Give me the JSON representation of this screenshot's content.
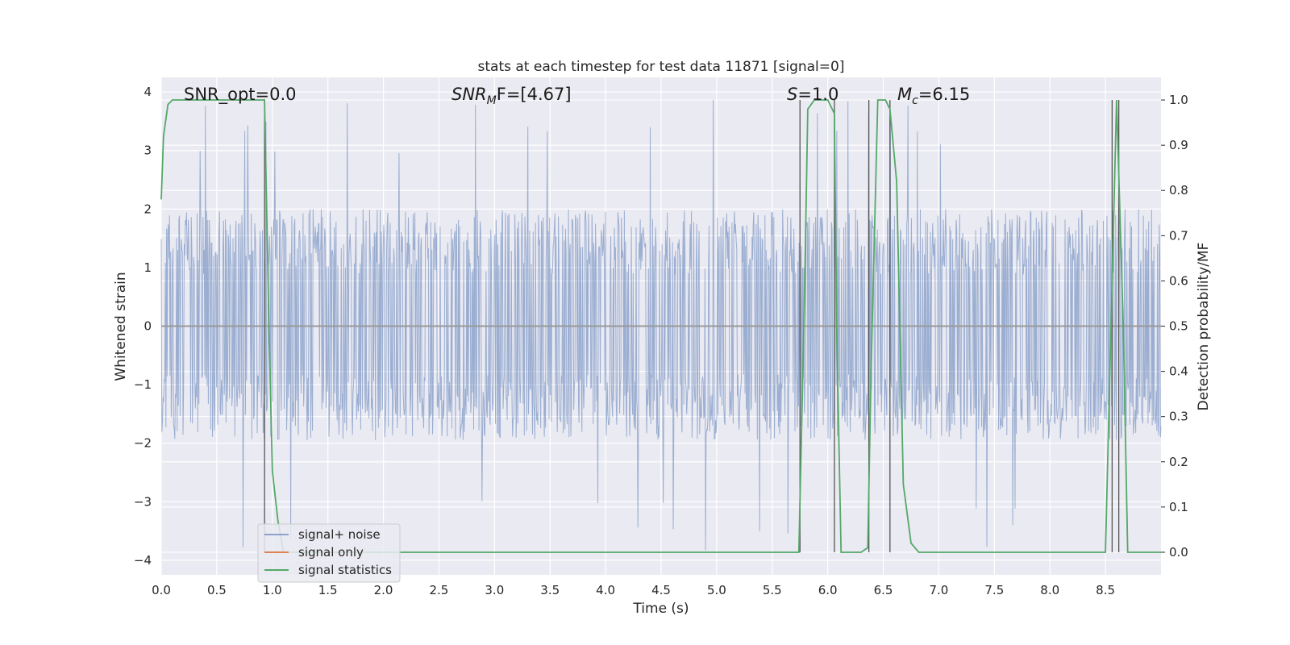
{
  "chart_data": {
    "type": "line",
    "title": "stats at each timestep for test data 11871 [signal=0]",
    "xlabel": "Time (s)",
    "ylabel": "Whitened strain",
    "y2label": "Detection probability/MF",
    "xlim": [
      0,
      9
    ],
    "ylim": [
      -4.25,
      4.25
    ],
    "y2lim": [
      -0.05,
      1.05
    ],
    "xticks": [
      "0.0",
      "0.5",
      "1.0",
      "1.5",
      "2.0",
      "2.5",
      "3.0",
      "3.5",
      "4.0",
      "4.5",
      "5.0",
      "5.5",
      "6.0",
      "6.5",
      "7.0",
      "7.5",
      "8.0",
      "8.5"
    ],
    "yticks": [
      "−4",
      "−3",
      "−2",
      "−1",
      "0",
      "1",
      "2",
      "3",
      "4"
    ],
    "y2ticks": [
      "0.0",
      "0.1",
      "0.2",
      "0.3",
      "0.4",
      "0.5",
      "0.6",
      "0.7",
      "0.8",
      "0.9",
      "1.0"
    ],
    "grid": true,
    "legend_position": "lower-left",
    "annotations": {
      "snr_opt": "SNR_opt=0.0",
      "snr_mf_sym": "SNR",
      "snr_mf_sub": "M",
      "snr_mf_rest": "F=[4.67]",
      "s_sym": "S",
      "s_rest": "=1.0",
      "mc_sym": "M",
      "mc_sub": "c",
      "mc_rest": "=6.15"
    },
    "series": [
      {
        "name": "signal+ noise",
        "color": "#4c72b0",
        "noise_band": [
          -1.5,
          1.6
        ],
        "peaks_range": [
          -3.9,
          3.9
        ]
      },
      {
        "name": "signal only",
        "color": "#dd8452",
        "values": []
      },
      {
        "name": "signal statistics",
        "color": "#55a868",
        "axis": "right",
        "x": [
          0.0,
          0.02,
          0.06,
          0.1,
          0.2,
          0.4,
          0.6,
          0.8,
          0.93,
          0.97,
          1.0,
          1.05,
          1.1,
          1.2,
          1.5,
          2.0,
          3.0,
          4.0,
          5.0,
          5.5,
          5.74,
          5.79,
          5.82,
          5.88,
          5.95,
          6.0,
          6.06,
          6.08,
          6.12,
          6.2,
          6.3,
          6.36,
          6.39,
          6.45,
          6.52,
          6.56,
          6.62,
          6.68,
          6.75,
          6.82,
          7.0,
          8.0,
          8.5,
          8.55,
          8.6,
          8.66,
          8.7,
          8.77,
          8.86,
          9.0
        ],
        "y": [
          0.78,
          0.92,
          0.99,
          1.0,
          1.0,
          1.0,
          1.0,
          1.0,
          1.0,
          0.5,
          0.18,
          0.07,
          0.0,
          0.0,
          0.0,
          0.0,
          0.0,
          0.0,
          0.0,
          0.0,
          0.0,
          0.55,
          0.98,
          1.0,
          1.0,
          1.0,
          0.97,
          0.5,
          0.0,
          0.0,
          0.0,
          0.01,
          0.4,
          1.0,
          1.0,
          0.98,
          0.82,
          0.15,
          0.02,
          0.0,
          0.0,
          0.0,
          0.0,
          0.5,
          1.0,
          0.5,
          0.0,
          0.0,
          0.0,
          0.0
        ]
      }
    ],
    "vertical_lines": [
      0.93,
      5.75,
      6.06,
      6.37,
      6.56,
      8.56,
      8.62
    ],
    "vertical_line_color": "#555555"
  }
}
